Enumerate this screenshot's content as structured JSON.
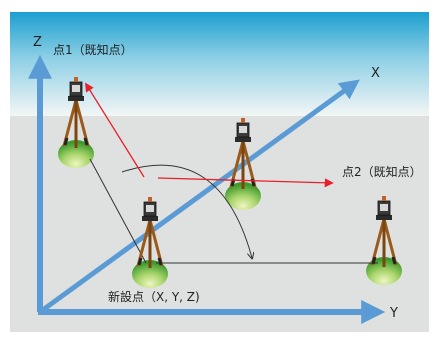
{
  "labels": {
    "axis_z": "Z",
    "axis_x": "X",
    "axis_y": "Y",
    "point1": "点1（既知点）",
    "point2": "点2（既知点）",
    "new_point": "新設点（X, Y, Z)"
  },
  "colors": {
    "axis_arrow": "#5b9bd5",
    "measurement_line": "#e8202a",
    "arc_line": "#333333",
    "sky_top": "#1c9fd0",
    "sky_bottom": "#f3f6f5",
    "ground": "#dfe1e0",
    "tripod_leg": "#9a5a1a",
    "mound_green": "#55b036"
  },
  "icons": [
    "tripod-instrument-icon"
  ]
}
